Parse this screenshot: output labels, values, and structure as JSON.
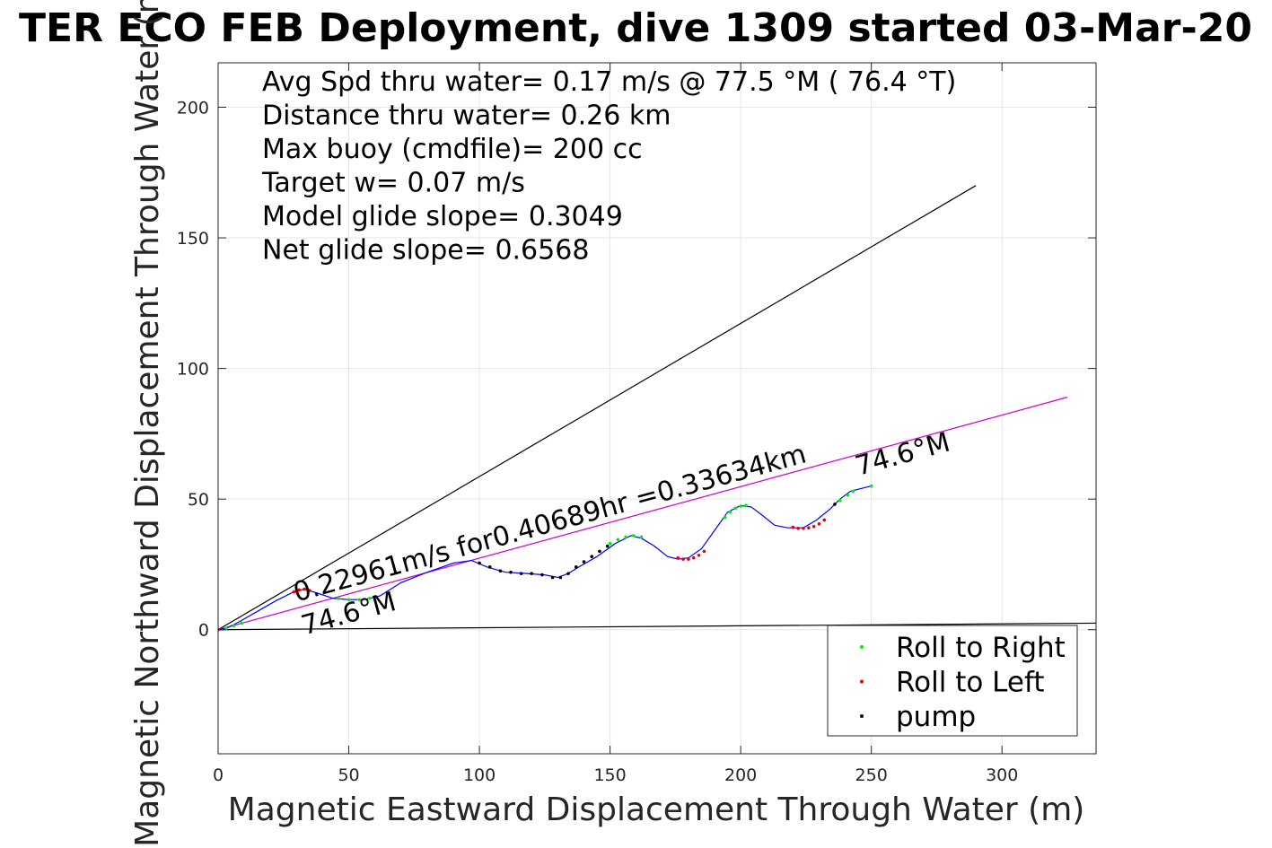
{
  "chart_data": {
    "type": "line",
    "title": "TER ECO FEB Deployment, dive 1309 started 03-Mar-20",
    "xlabel": "Magnetic Eastward Displacement Through Water (m)",
    "ylabel": "Magnetic Northward Displacement Through Water (m)",
    "xlim": [
      0,
      336
    ],
    "ylim": [
      -47.5,
      217
    ],
    "xticks": [
      0,
      50,
      100,
      150,
      200,
      250,
      300
    ],
    "yticks": [
      0,
      50,
      100,
      150,
      200
    ],
    "grid": true,
    "legend_placement": "bottom-right",
    "text_block": [
      "Avg Spd thru water=  0.17 m/s @  77.5 °M ( 76.4 °T)",
      "Distance thru water=  0.26 km",
      "Max buoy (cmdfile)= 200 cc",
      "Target w= 0.07 m/s",
      "Model glide slope= 0.3049",
      "Net glide slope= 0.6568"
    ],
    "annotations": {
      "speed_label": "0.22961m/s for0.40689hr =0.33634km",
      "heading_start": "74.6°M",
      "heading_end": "74.6°M"
    },
    "reference_lines": [
      {
        "x": [
          0,
          290
        ],
        "y": [
          0,
          170
        ],
        "color": "#000000"
      },
      {
        "x": [
          0,
          336
        ],
        "y": [
          0,
          2.5
        ],
        "color": "#000000"
      },
      {
        "x": [
          0,
          325
        ],
        "y": [
          0,
          89
        ],
        "color": "#cc00cc"
      }
    ],
    "series": [
      {
        "name": "track",
        "color": "#0000ff",
        "x": [
          0,
          3,
          8,
          15,
          22,
          29,
          33,
          38,
          44,
          50,
          56,
          62,
          70,
          80,
          90,
          97,
          103,
          110,
          118,
          125,
          130,
          134,
          138,
          145,
          152,
          158,
          162,
          167,
          172,
          176,
          180,
          185,
          190,
          195,
          200,
          204,
          208,
          213,
          218,
          224,
          229,
          234,
          238,
          242,
          250
        ],
        "y": [
          0,
          0.5,
          3,
          7,
          11,
          14.5,
          15.5,
          14,
          12,
          11.5,
          11.5,
          13,
          18,
          22,
          25.5,
          26.5,
          24,
          22,
          21.5,
          21,
          20,
          21.5,
          24,
          28,
          33,
          36,
          35,
          32,
          28,
          27,
          27.5,
          31,
          38,
          45,
          47.5,
          47,
          44,
          40,
          39,
          39,
          42,
          46,
          50,
          53,
          55
        ]
      }
    ],
    "markers": [
      {
        "name": "Roll to Right",
        "color": "#00ee00",
        "x": [
          3,
          6,
          9,
          46,
          50,
          54,
          58,
          150,
          153,
          156,
          159,
          162,
          194,
          196,
          198,
          200,
          202,
          238,
          241,
          243,
          250
        ],
        "y": [
          0.5,
          1.5,
          2.5,
          12,
          11.5,
          11.5,
          12,
          33,
          34.5,
          35.5,
          36,
          35.5,
          43,
          45,
          46.5,
          47.3,
          47.6,
          49.5,
          51.5,
          53,
          55
        ]
      },
      {
        "name": "Roll to Left",
        "color": "#ee0000",
        "x": [
          0,
          29,
          31,
          33,
          35,
          176,
          178,
          180,
          182,
          184,
          186,
          220,
          222,
          224,
          226,
          228,
          230,
          232
        ],
        "y": [
          0,
          14.5,
          15.2,
          15.5,
          15,
          27.5,
          27,
          27,
          27.5,
          28.5,
          30,
          39.2,
          38.8,
          38.8,
          39,
          39.5,
          40.5,
          42
        ]
      },
      {
        "name": "pump",
        "color": "#000000",
        "x": [
          100,
          104,
          108,
          112,
          116,
          120,
          124,
          128,
          131,
          134,
          137,
          140,
          143,
          146,
          149,
          236
        ],
        "y": [
          25.5,
          24,
          22.5,
          22,
          21.5,
          21.5,
          21,
          20,
          20,
          21.5,
          24,
          26,
          28,
          30,
          32,
          48
        ]
      }
    ]
  }
}
